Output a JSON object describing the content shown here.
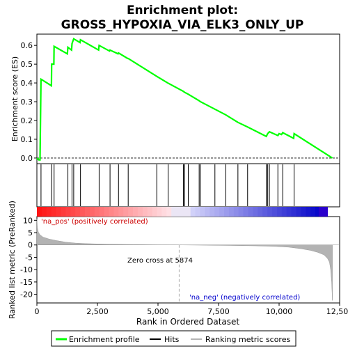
{
  "title": "Enrichment plot:\nGROSS_HYPOXIA_VIA_ELK3_ONLY_UP",
  "title_lines": [
    "Enrichment plot:",
    "GROSS_HYPOXIA_VIA_ELK3_ONLY_UP"
  ],
  "colors": {
    "enrichment": "#00ff00",
    "hits": "#000000",
    "metric_fill": "#b3b3b3",
    "zero_line": "#aaaaaa",
    "pos_label": "#cc0000",
    "neg_label": "#0000cc"
  },
  "chart_data": [
    {
      "panel": "enrichment",
      "type": "line",
      "ylabel": "Enrichment score (ES)",
      "xlim": [
        0,
        12500
      ],
      "ylim": [
        -0.03,
        0.66
      ],
      "yticks": [
        0.0,
        0.1,
        0.2,
        0.3,
        0.4,
        0.5,
        0.6
      ],
      "ytick_labels": [
        "0.0",
        "0.1",
        "0.2",
        "0.3",
        "0.4",
        "0.5",
        "0.6"
      ],
      "x": [
        0,
        80,
        130,
        170,
        600,
        610,
        700,
        710,
        1260,
        1280,
        1430,
        1450,
        1520,
        1780,
        1800,
        2550,
        2570,
        3000,
        3020,
        3350,
        3370,
        3750,
        3770,
        4950,
        5400,
        6050,
        6100,
        6250,
        6700,
        6750,
        7350,
        7800,
        8300,
        8700,
        9400,
        9470,
        9530,
        9600,
        9950,
        10000,
        10100,
        10150,
        10600,
        10620,
        12200
      ],
      "y": [
        0.0,
        -0.01,
        -0.01,
        0.42,
        0.385,
        0.5,
        0.5,
        0.595,
        0.555,
        0.59,
        0.575,
        0.61,
        0.635,
        0.615,
        0.63,
        0.575,
        0.6,
        0.57,
        0.575,
        0.555,
        0.56,
        0.53,
        0.53,
        0.435,
        0.4,
        0.355,
        0.35,
        0.34,
        0.305,
        0.3,
        0.26,
        0.23,
        0.19,
        0.165,
        0.12,
        0.115,
        0.13,
        0.14,
        0.12,
        0.13,
        0.125,
        0.135,
        0.105,
        0.13,
        0.0
      ]
    },
    {
      "panel": "hits",
      "type": "scatter",
      "positions": [
        170,
        610,
        710,
        1280,
        1450,
        1520,
        1800,
        2570,
        3020,
        3370,
        3770,
        4950,
        5420,
        6050,
        6100,
        6250,
        6700,
        6750,
        7350,
        7800,
        8300,
        8700,
        9470,
        9530,
        9600,
        9950,
        10150,
        10620
      ]
    },
    {
      "panel": "ranking_metric",
      "type": "area",
      "ylabel": "Ranked list metric (PreRanked)",
      "xlabel": "Rank in Ordered Dataset",
      "xlim": [
        0,
        12500
      ],
      "ylim": [
        -23.5,
        11.5
      ],
      "yticks": [
        10,
        5,
        0,
        -5,
        -10,
        -15,
        -20
      ],
      "ytick_labels": [
        "10",
        "5",
        "0",
        "-5",
        "-10",
        "-15",
        "-20"
      ],
      "xticks": [
        0,
        2500,
        5000,
        7500,
        10000,
        12500
      ],
      "xtick_labels": [
        "0",
        "2,500",
        "5,000",
        "7,500",
        "10,000",
        "12,500"
      ],
      "x": [
        0,
        20,
        60,
        120,
        250,
        500,
        800,
        1200,
        1600,
        2000,
        2500,
        3000,
        4000,
        5000,
        5874,
        7000,
        8000,
        9000,
        9800,
        10400,
        10900,
        11300,
        11600,
        11850,
        12000,
        12080,
        12130,
        12170,
        12200
      ],
      "values": [
        10.5,
        7.0,
        5.2,
        4.2,
        3.2,
        2.4,
        1.8,
        1.1,
        0.75,
        0.55,
        0.4,
        0.3,
        0.15,
        0.05,
        0.0,
        -0.1,
        -0.2,
        -0.35,
        -0.55,
        -0.9,
        -1.5,
        -2.2,
        -3.0,
        -4.0,
        -5.5,
        -7.0,
        -10.0,
        -15.0,
        -22.5
      ],
      "zero_cross_rank": 5874,
      "annotations": {
        "zero_cross": "Zero cross at 5874",
        "pos": "'na_pos' (positively correlated)",
        "neg": "'na_neg' (negatively correlated)"
      }
    }
  ],
  "legend": {
    "items": [
      {
        "label": "Enrichment profile",
        "color": "#00ff00"
      },
      {
        "label": "Hits",
        "color": "#000000"
      },
      {
        "label": "Ranking metric scores",
        "color": "#b3b3b3"
      }
    ]
  }
}
